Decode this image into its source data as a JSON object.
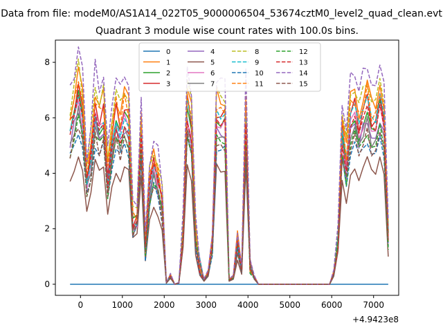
{
  "chart_data": {
    "type": "line",
    "suptitle": "Data from file: modeM0/AS1A14_022T05_9000006504_53674cztM0_level2_quad_clean.evt",
    "title": "Quadrant 3 module wise count rates with 100.0s bins.",
    "xlabel": "",
    "ylabel": "",
    "x_offset_label": "+4.9423e8",
    "xlim": [
      -600,
      7600
    ],
    "ylim": [
      -0.4,
      8.8
    ],
    "xticks": [
      0,
      1000,
      2000,
      3000,
      4000,
      5000,
      6000,
      7000
    ],
    "yticks": [
      0,
      2,
      4,
      6,
      8
    ],
    "xtick_labels": [
      "0",
      "1000",
      "2000",
      "3000",
      "4000",
      "5000",
      "6000",
      "7000"
    ],
    "ytick_labels": [
      "0",
      "2",
      "4",
      "6",
      "8"
    ],
    "x": [
      -250,
      -150,
      -50,
      50,
      150,
      250,
      350,
      450,
      550,
      650,
      750,
      850,
      950,
      1050,
      1150,
      1250,
      1350,
      1450,
      1550,
      1650,
      1750,
      1850,
      1950,
      2050,
      2150,
      2250,
      2350,
      2450,
      2550,
      2650,
      2750,
      2850,
      2950,
      3050,
      3150,
      3250,
      3350,
      3450,
      3550,
      3650,
      3750,
      3850,
      3950,
      4050,
      4150,
      4250,
      4350,
      4450,
      4550,
      4650,
      4750,
      4850,
      4950,
      5050,
      5150,
      5250,
      5350,
      5450,
      5550,
      5650,
      5750,
      5850,
      5950,
      6050,
      6150,
      6250,
      6350,
      6450,
      6550,
      6650,
      6750,
      6850,
      6950,
      7050,
      7150,
      7250,
      7350
    ],
    "base_profile": [
      5.3,
      5.9,
      6.6,
      5.8,
      3.6,
      4.4,
      6.0,
      5.5,
      5.8,
      3.6,
      5.1,
      5.8,
      5.3,
      5.9,
      5.6,
      2.1,
      2.3,
      5.3,
      1.2,
      3.4,
      4.1,
      3.6,
      2.8,
      0.05,
      0.3,
      0.0,
      0.05,
      1.8,
      6.1,
      5.4,
      1.7,
      0.6,
      0.15,
      0.4,
      1.4,
      5.8,
      5.5,
      5.7,
      0.15,
      0.25,
      1.4,
      0.5,
      5.8,
      0.65,
      0.25,
      0.0,
      0.0,
      0.0,
      0.0,
      0.0,
      0.0,
      0.0,
      0.0,
      0.0,
      0.0,
      0.0,
      0.0,
      0.0,
      0.0,
      0.0,
      0.0,
      0.0,
      0.0,
      0.4,
      1.5,
      5.2,
      4.2,
      5.7,
      6.0,
      5.3,
      5.8,
      6.2,
      5.5,
      5.3,
      6.3,
      5.6,
      1.6
    ],
    "series": [
      {
        "name": "0",
        "color": "#1f77b4",
        "dash": false,
        "scale": 0.0
      },
      {
        "name": "1",
        "color": "#ff7f0e",
        "dash": false,
        "scale": 1.17
      },
      {
        "name": "2",
        "color": "#2ca02c",
        "dash": false,
        "scale": 1.02
      },
      {
        "name": "3",
        "color": "#d62728",
        "dash": false,
        "scale": 1.08
      },
      {
        "name": "4",
        "color": "#9467bd",
        "dash": false,
        "scale": 0.96
      },
      {
        "name": "5",
        "color": "#8c564b",
        "dash": false,
        "scale": 0.72
      },
      {
        "name": "6",
        "color": "#e377c2",
        "dash": false,
        "scale": 1.0
      },
      {
        "name": "7",
        "color": "#7f7f7f",
        "dash": false,
        "scale": 0.94
      },
      {
        "name": "8",
        "color": "#bcbd22",
        "dash": true,
        "scale": 1.2
      },
      {
        "name": "9",
        "color": "#17becf",
        "dash": true,
        "scale": 1.05
      },
      {
        "name": "10",
        "color": "#1f77b4",
        "dash": true,
        "scale": 0.85
      },
      {
        "name": "11",
        "color": "#ff7f0e",
        "dash": true,
        "scale": 1.12
      },
      {
        "name": "12",
        "color": "#2ca02c",
        "dash": true,
        "scale": 0.9
      },
      {
        "name": "13",
        "color": "#d62728",
        "dash": true,
        "scale": 1.0
      },
      {
        "name": "14",
        "color": "#9467bd",
        "dash": true,
        "scale": 1.3
      },
      {
        "name": "15",
        "color": "#8c564b",
        "dash": true,
        "scale": 0.88
      }
    ],
    "legend": {
      "placement": "top-center",
      "columns": 4
    }
  }
}
